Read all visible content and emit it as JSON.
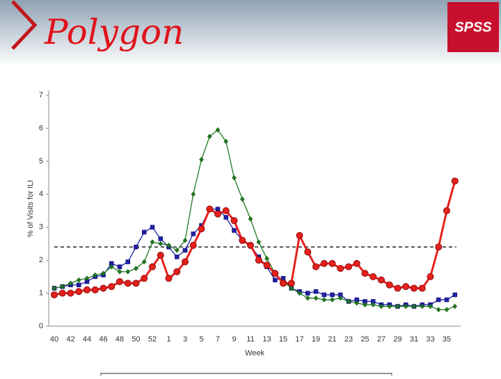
{
  "slide": {
    "title": "Polygon",
    "logo": "SPSS"
  },
  "chart_data": {
    "type": "line",
    "x_label": "Week",
    "y_label": "% of Visits for ILI",
    "categories": [
      "40",
      null,
      "42",
      null,
      "44",
      null,
      "46",
      null,
      "48",
      null,
      "50",
      null,
      "52",
      null,
      "1",
      null,
      "3",
      null,
      "5",
      null,
      "7",
      null,
      "9",
      null,
      "11",
      null,
      "13",
      null,
      "15",
      null,
      "17",
      null,
      "19",
      null,
      "21",
      null,
      "23",
      null,
      "25",
      null,
      "27",
      null,
      "29",
      null,
      "31",
      null,
      "33",
      null,
      "35",
      null
    ],
    "series": [
      {
        "color": "#1f1fa8",
        "marker": "square",
        "values": [
          1.15,
          1.2,
          1.25,
          1.25,
          1.35,
          1.5,
          1.55,
          1.9,
          1.8,
          1.95,
          2.4,
          2.85,
          3.0,
          2.65,
          2.4,
          2.1,
          2.3,
          2.8,
          3.05,
          3.55,
          3.55,
          3.3,
          2.9,
          2.6,
          2.45,
          2.1,
          1.8,
          1.4,
          1.45,
          1.15,
          1.05,
          1.0,
          1.05,
          0.95,
          0.95,
          0.95,
          0.75,
          0.8,
          0.75,
          0.75,
          0.65,
          0.65,
          0.6,
          0.65,
          0.6,
          0.65,
          0.65,
          0.8,
          0.8,
          0.95
        ]
      },
      {
        "color": "#1e7a1e",
        "marker": "diamond",
        "values": [
          1.15,
          1.2,
          1.3,
          1.4,
          1.45,
          1.55,
          1.6,
          1.8,
          1.65,
          1.65,
          1.75,
          1.95,
          2.55,
          2.5,
          2.45,
          2.3,
          2.6,
          4.0,
          5.05,
          5.75,
          5.95,
          5.6,
          4.5,
          3.85,
          3.25,
          2.55,
          2.05,
          1.6,
          1.35,
          1.15,
          1.0,
          0.85,
          0.85,
          0.8,
          0.8,
          0.85,
          0.75,
          0.7,
          0.65,
          0.65,
          0.6,
          0.6,
          0.6,
          0.6,
          0.6,
          0.6,
          0.6,
          0.5,
          0.5,
          0.6
        ]
      },
      {
        "color": "#e8201c",
        "marker": "circle",
        "values": [
          0.95,
          1.0,
          1.0,
          1.05,
          1.1,
          1.1,
          1.15,
          1.2,
          1.35,
          1.3,
          1.3,
          1.45,
          1.8,
          2.15,
          1.45,
          1.65,
          1.95,
          2.45,
          2.95,
          3.55,
          3.4,
          3.5,
          3.2,
          2.6,
          2.45,
          2.0,
          1.85,
          1.6,
          1.3,
          1.3,
          2.75,
          2.25,
          1.8,
          1.9,
          1.9,
          1.75,
          1.8,
          1.9,
          1.6,
          1.5,
          1.4,
          1.25,
          1.15,
          1.2,
          1.15,
          1.15,
          1.5,
          2.4,
          3.5,
          4.4
        ]
      }
    ],
    "baseline": 2.4,
    "ylim": [
      0,
      7
    ],
    "yticks": [
      0,
      1,
      2,
      3,
      4,
      5,
      6,
      7
    ]
  }
}
